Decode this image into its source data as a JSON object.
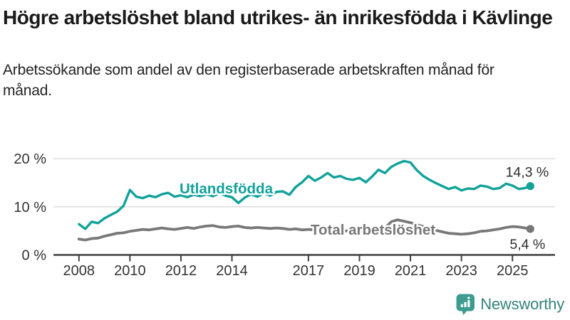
{
  "header": {
    "title": "Högre arbetslöshet bland utrikes- än inrikesfödda i Kävlinge",
    "subtitle": "Arbetssökande som andel av den registerbaserade arbetskraften månad för månad."
  },
  "footer": {
    "brand": "Newsworthy",
    "icon": "speech-bubble-bar-chart-icon"
  },
  "colors": {
    "teal": "#11a29a",
    "gray": "#787878",
    "grid": "#d9d9d9",
    "axis": "#3f3f3f",
    "tick_text": "#333333",
    "annotation_text": "#2e2e2e",
    "title_text": "#1a1a1a",
    "logo_icon": "#3d9b8f",
    "logo_text": "#35837c"
  },
  "chart_data": {
    "type": "line",
    "title": "Högre arbetslöshet bland utrikes- än inrikesfödda i Kävlinge",
    "subtitle": "Arbetssökande som andel av den registerbaserade arbetskraften månad för månad.",
    "units": "%",
    "grid": "horizontal",
    "legend": "inline-series-labels",
    "xlim": [
      2007.0,
      2026.67
    ],
    "ylim": [
      0,
      20
    ],
    "x_ticks": [
      2008,
      2010,
      2012,
      2014,
      2017,
      2019,
      2021,
      2023,
      2025
    ],
    "y_ticks": [
      {
        "v": 0,
        "label": "0 %"
      },
      {
        "v": 10,
        "label": "10 %"
      },
      {
        "v": 20,
        "label": "20 %"
      }
    ],
    "x": [
      2008.0,
      2008.25,
      2008.5,
      2008.75,
      2009.0,
      2009.25,
      2009.5,
      2009.75,
      2010.0,
      2010.25,
      2010.5,
      2010.75,
      2011.0,
      2011.25,
      2011.5,
      2011.75,
      2012.0,
      2012.25,
      2012.5,
      2012.75,
      2013.0,
      2013.25,
      2013.5,
      2013.75,
      2014.0,
      2014.25,
      2014.5,
      2014.75,
      2015.0,
      2015.25,
      2015.5,
      2015.75,
      2016.0,
      2016.25,
      2016.5,
      2016.75,
      2017.0,
      2017.25,
      2017.5,
      2017.75,
      2018.0,
      2018.25,
      2018.5,
      2018.75,
      2019.0,
      2019.25,
      2019.5,
      2019.75,
      2020.0,
      2020.25,
      2020.5,
      2020.75,
      2021.0,
      2021.25,
      2021.5,
      2021.75,
      2022.0,
      2022.25,
      2022.5,
      2022.75,
      2023.0,
      2023.25,
      2023.5,
      2023.75,
      2024.0,
      2024.25,
      2024.5,
      2024.75,
      2025.0,
      2025.25,
      2025.5,
      2025.7
    ],
    "series": [
      {
        "name": "Utlandsfödda",
        "color": "#11a29a",
        "end_label": "14,3 %",
        "end_value": 14.3,
        "values": [
          6.4,
          5.4,
          6.9,
          6.6,
          7.6,
          8.3,
          9.0,
          10.2,
          13.5,
          12.1,
          11.8,
          12.3,
          12.0,
          12.6,
          12.9,
          12.1,
          12.4,
          12.0,
          12.5,
          12.2,
          12.6,
          12.2,
          12.8,
          12.3,
          12.0,
          10.8,
          11.9,
          12.6,
          12.1,
          12.8,
          12.3,
          13.1,
          13.2,
          12.5,
          14.1,
          15.1,
          16.4,
          15.4,
          16.1,
          17.0,
          16.1,
          16.4,
          15.8,
          15.6,
          16.0,
          15.1,
          16.3,
          17.7,
          17.0,
          18.3,
          19.0,
          19.5,
          19.2,
          17.6,
          16.4,
          15.6,
          14.9,
          14.3,
          13.7,
          14.1,
          13.4,
          13.8,
          13.7,
          14.4,
          14.2,
          13.7,
          13.9,
          14.8,
          14.4,
          13.7,
          13.9,
          14.3
        ]
      },
      {
        "name": "Total arbetslöshet",
        "color": "#787878",
        "end_label": "5,4 %",
        "end_value": 5.4,
        "values": [
          3.3,
          3.1,
          3.4,
          3.5,
          3.9,
          4.2,
          4.5,
          4.6,
          4.9,
          5.1,
          5.3,
          5.2,
          5.4,
          5.6,
          5.4,
          5.3,
          5.5,
          5.7,
          5.5,
          5.8,
          6.0,
          6.1,
          5.8,
          5.7,
          5.9,
          6.0,
          5.7,
          5.6,
          5.7,
          5.6,
          5.5,
          5.6,
          5.5,
          5.3,
          5.4,
          5.2,
          5.3,
          5.2,
          5.1,
          5.2,
          5.0,
          4.9,
          5.0,
          4.9,
          5.0,
          5.1,
          5.2,
          5.4,
          5.6,
          6.9,
          7.3,
          7.0,
          6.7,
          6.3,
          5.9,
          5.5,
          5.1,
          4.8,
          4.5,
          4.4,
          4.3,
          4.4,
          4.6,
          4.9,
          5.0,
          5.2,
          5.4,
          5.7,
          5.9,
          5.8,
          5.6,
          5.4
        ]
      }
    ]
  }
}
